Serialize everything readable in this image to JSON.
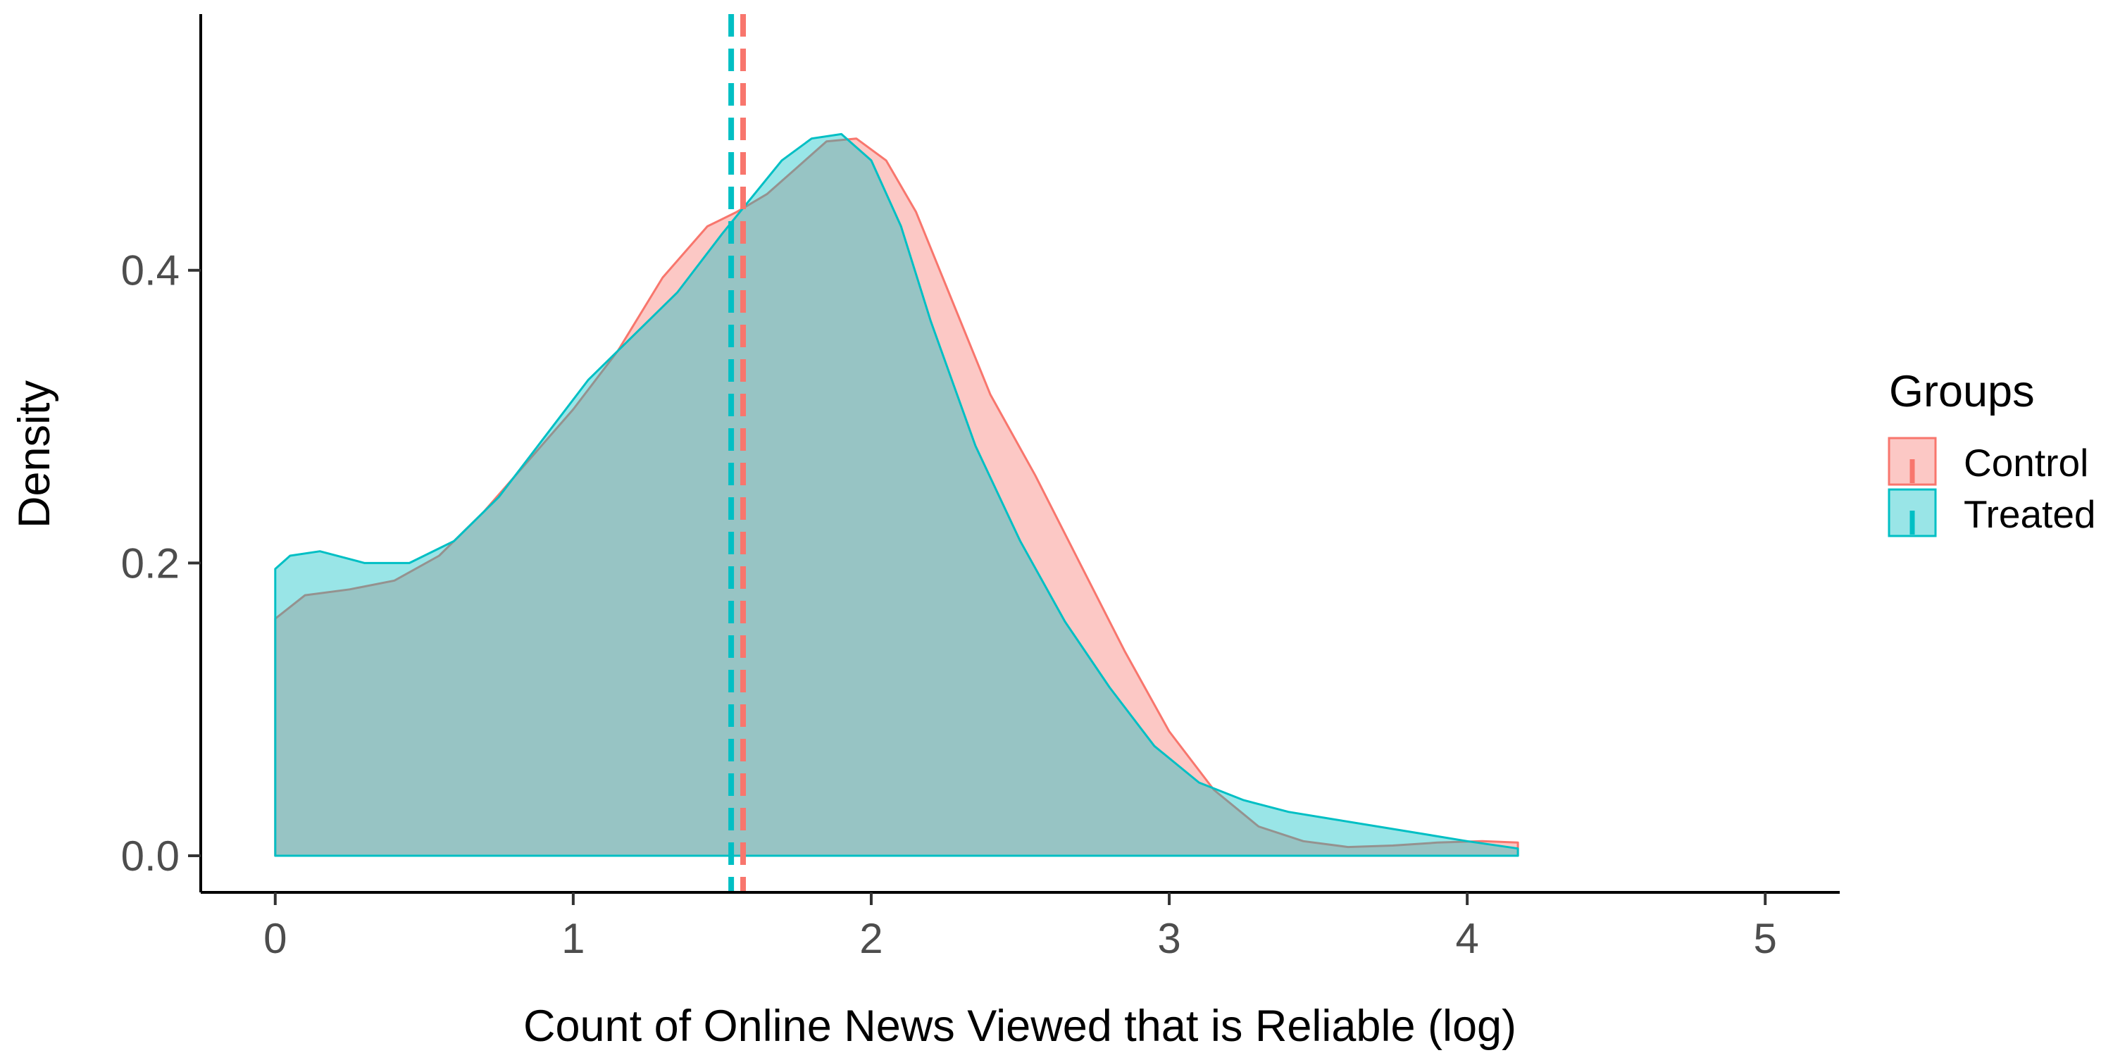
{
  "chart_data": {
    "type": "area",
    "xlabel": "Count of Online News Viewed that is Reliable (log)",
    "ylabel": "Density",
    "xlim": [
      -0.25,
      5.25
    ],
    "ylim": [
      -0.025,
      0.575
    ],
    "x_ticks": [
      "0",
      "1",
      "2",
      "3",
      "4",
      "5"
    ],
    "y_ticks": [
      "0.0",
      "0.2",
      "0.4"
    ],
    "grid": false,
    "legend": {
      "title": "Groups",
      "placement": "right"
    },
    "series": [
      {
        "name": "Control",
        "color": "#F8766D",
        "fill": "#F8766D",
        "mean": 1.57,
        "x": [
          0,
          0.1,
          0.25,
          0.4,
          0.55,
          0.7,
          0.85,
          1.0,
          1.15,
          1.3,
          1.45,
          1.55,
          1.65,
          1.75,
          1.85,
          1.95,
          2.05,
          2.15,
          2.25,
          2.4,
          2.55,
          2.7,
          2.85,
          3.0,
          3.15,
          3.3,
          3.45,
          3.6,
          3.75,
          3.9,
          4.05,
          4.17
        ],
        "y": [
          0.162,
          0.178,
          0.182,
          0.188,
          0.205,
          0.235,
          0.27,
          0.305,
          0.345,
          0.395,
          0.43,
          0.44,
          0.452,
          0.47,
          0.488,
          0.49,
          0.475,
          0.44,
          0.39,
          0.315,
          0.26,
          0.2,
          0.14,
          0.085,
          0.045,
          0.02,
          0.01,
          0.006,
          0.007,
          0.009,
          0.01,
          0.009
        ]
      },
      {
        "name": "Treated",
        "color": "#00BFC4",
        "fill": "#00BFC4",
        "mean": 1.53,
        "x": [
          0,
          0.05,
          0.15,
          0.3,
          0.45,
          0.6,
          0.75,
          0.9,
          1.05,
          1.2,
          1.35,
          1.5,
          1.6,
          1.7,
          1.8,
          1.9,
          2.0,
          2.1,
          2.2,
          2.35,
          2.5,
          2.65,
          2.8,
          2.95,
          3.1,
          3.25,
          3.4,
          3.55,
          3.7,
          3.85,
          4.0,
          4.17
        ],
        "y": [
          0.196,
          0.205,
          0.208,
          0.2,
          0.2,
          0.215,
          0.245,
          0.285,
          0.325,
          0.355,
          0.385,
          0.425,
          0.45,
          0.475,
          0.49,
          0.493,
          0.475,
          0.43,
          0.365,
          0.28,
          0.215,
          0.16,
          0.115,
          0.075,
          0.05,
          0.038,
          0.03,
          0.025,
          0.02,
          0.015,
          0.01,
          0.005
        ]
      }
    ]
  }
}
